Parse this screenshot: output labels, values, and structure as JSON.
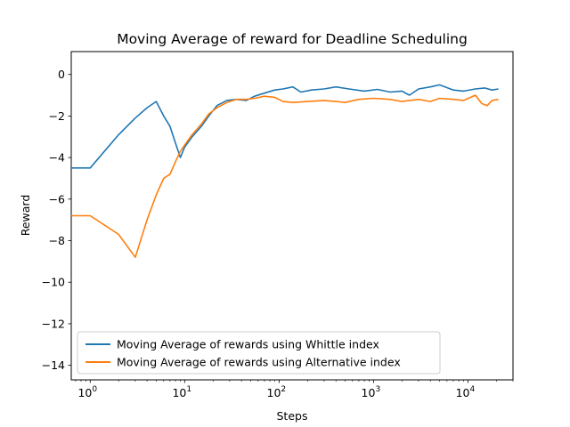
{
  "chart_data": {
    "type": "line",
    "title": "Moving Average of reward for Deadline Scheduling",
    "xlabel": "Steps",
    "ylabel": "Reward",
    "x_scale": "log",
    "xlim": [
      0.63,
      30000
    ],
    "ylim": [
      -14.7,
      1.1
    ],
    "x_ticks": [
      {
        "value": 1,
        "base": "10",
        "exp": "0"
      },
      {
        "value": 10,
        "base": "10",
        "exp": "1"
      },
      {
        "value": 100,
        "base": "10",
        "exp": "2"
      },
      {
        "value": 1000,
        "base": "10",
        "exp": "3"
      },
      {
        "value": 10000,
        "base": "10",
        "exp": "4"
      }
    ],
    "y_ticks": [
      {
        "value": 0,
        "label": "0"
      },
      {
        "value": -2,
        "label": "−2"
      },
      {
        "value": -4,
        "label": "−4"
      },
      {
        "value": -6,
        "label": "−6"
      },
      {
        "value": -8,
        "label": "−8"
      },
      {
        "value": -10,
        "label": "−10"
      },
      {
        "value": -12,
        "label": "−12"
      },
      {
        "value": -14,
        "label": "−14"
      }
    ],
    "grid": false,
    "legend_position": "lower-left",
    "series": [
      {
        "name": "Moving Average of rewards using Whittle index",
        "color": "#1f77b4",
        "points": [
          [
            0.63,
            -4.5
          ],
          [
            1,
            -4.5
          ],
          [
            2,
            -2.9
          ],
          [
            3,
            -2.1
          ],
          [
            4,
            -1.6
          ],
          [
            5,
            -1.3
          ],
          [
            6,
            -2.0
          ],
          [
            7,
            -2.5
          ],
          [
            8,
            -3.3
          ],
          [
            9,
            -4.0
          ],
          [
            10,
            -3.5
          ],
          [
            12,
            -3.0
          ],
          [
            15,
            -2.5
          ],
          [
            18,
            -2.0
          ],
          [
            22,
            -1.5
          ],
          [
            28,
            -1.25
          ],
          [
            35,
            -1.2
          ],
          [
            45,
            -1.25
          ],
          [
            55,
            -1.05
          ],
          [
            70,
            -0.9
          ],
          [
            90,
            -0.75
          ],
          [
            110,
            -0.7
          ],
          [
            140,
            -0.6
          ],
          [
            170,
            -0.85
          ],
          [
            220,
            -0.75
          ],
          [
            300,
            -0.7
          ],
          [
            400,
            -0.6
          ],
          [
            550,
            -0.7
          ],
          [
            800,
            -0.8
          ],
          [
            1100,
            -0.72
          ],
          [
            1500,
            -0.85
          ],
          [
            2000,
            -0.8
          ],
          [
            2400,
            -1.0
          ],
          [
            3000,
            -0.7
          ],
          [
            4000,
            -0.6
          ],
          [
            5000,
            -0.5
          ],
          [
            7000,
            -0.75
          ],
          [
            9000,
            -0.8
          ],
          [
            12000,
            -0.7
          ],
          [
            15000,
            -0.65
          ],
          [
            18000,
            -0.75
          ],
          [
            21000,
            -0.7
          ]
        ]
      },
      {
        "name": "Moving Average of rewards using Alternative index",
        "color": "#ff7f0e",
        "points": [
          [
            0.63,
            -6.8
          ],
          [
            1,
            -6.8
          ],
          [
            2,
            -7.7
          ],
          [
            3,
            -8.8
          ],
          [
            4,
            -7.0
          ],
          [
            5,
            -5.8
          ],
          [
            6,
            -5.0
          ],
          [
            7,
            -4.8
          ],
          [
            8,
            -4.2
          ],
          [
            9,
            -3.7
          ],
          [
            10,
            -3.4
          ],
          [
            12,
            -2.9
          ],
          [
            15,
            -2.4
          ],
          [
            18,
            -1.9
          ],
          [
            22,
            -1.6
          ],
          [
            28,
            -1.35
          ],
          [
            35,
            -1.2
          ],
          [
            45,
            -1.2
          ],
          [
            55,
            -1.15
          ],
          [
            70,
            -1.05
          ],
          [
            90,
            -1.1
          ],
          [
            110,
            -1.3
          ],
          [
            140,
            -1.35
          ],
          [
            200,
            -1.3
          ],
          [
            300,
            -1.25
          ],
          [
            400,
            -1.3
          ],
          [
            500,
            -1.35
          ],
          [
            700,
            -1.2
          ],
          [
            1000,
            -1.15
          ],
          [
            1500,
            -1.2
          ],
          [
            2000,
            -1.3
          ],
          [
            3000,
            -1.2
          ],
          [
            4000,
            -1.3
          ],
          [
            5000,
            -1.15
          ],
          [
            7000,
            -1.2
          ],
          [
            9000,
            -1.25
          ],
          [
            12000,
            -1.0
          ],
          [
            14000,
            -1.4
          ],
          [
            16000,
            -1.5
          ],
          [
            18000,
            -1.25
          ],
          [
            21000,
            -1.2
          ]
        ]
      }
    ]
  }
}
